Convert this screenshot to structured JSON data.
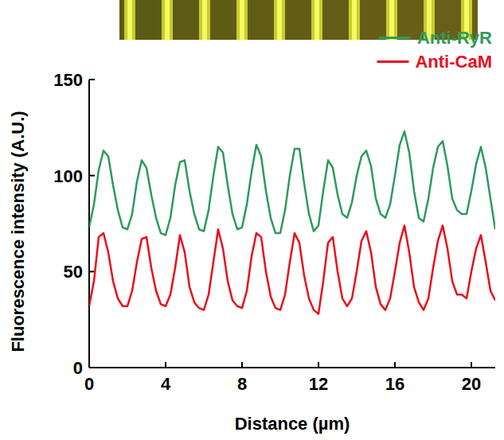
{
  "chart_data": {
    "type": "line",
    "x_label": "Distance (µm)",
    "y_label": "Fluorescence intensity (A.U.)",
    "x": [
      0,
      0.25,
      0.5,
      0.75,
      1,
      1.25,
      1.5,
      1.75,
      2,
      2.25,
      2.5,
      2.75,
      3,
      3.25,
      3.5,
      3.75,
      4,
      4.25,
      4.5,
      4.75,
      5,
      5.25,
      5.5,
      5.75,
      6,
      6.25,
      6.5,
      6.75,
      7,
      7.25,
      7.5,
      7.75,
      8,
      8.25,
      8.5,
      8.75,
      9,
      9.25,
      9.5,
      9.75,
      10,
      10.25,
      10.5,
      10.75,
      11,
      11.25,
      11.5,
      11.75,
      12,
      12.25,
      12.5,
      12.75,
      13,
      13.25,
      13.5,
      13.75,
      14,
      14.25,
      14.5,
      14.75,
      15,
      15.25,
      15.5,
      15.75,
      16,
      16.25,
      16.5,
      16.75,
      17,
      17.25,
      17.5,
      17.75,
      18,
      18.25,
      18.5,
      18.75,
      19,
      19.25,
      19.5,
      19.75,
      20,
      20.25,
      20.5,
      20.75,
      21,
      21.25
    ],
    "series": [
      {
        "name": "Anti-RyR",
        "color": "#2e9a5c",
        "values": [
          73,
          85,
          103,
          113,
          110,
          95,
          82,
          73,
          72,
          80,
          97,
          108,
          104,
          90,
          78,
          70,
          69,
          78,
          95,
          107,
          108,
          92,
          80,
          72,
          71,
          82,
          100,
          115,
          112,
          95,
          80,
          72,
          73,
          85,
          102,
          116,
          110,
          92,
          78,
          70,
          70,
          82,
          100,
          114,
          114,
          96,
          80,
          71,
          74,
          92,
          108,
          104,
          90,
          80,
          78,
          86,
          100,
          110,
          113,
          105,
          88,
          80,
          78,
          85,
          100,
          116,
          123,
          112,
          92,
          78,
          76,
          88,
          104,
          115,
          118,
          105,
          88,
          82,
          80,
          80,
          92,
          106,
          115,
          104,
          88,
          72
        ]
      },
      {
        "name": "Anti-CaM",
        "color": "#e8101c",
        "values": [
          32,
          45,
          68,
          70,
          60,
          45,
          36,
          32,
          32,
          40,
          55,
          67,
          68,
          52,
          40,
          33,
          32,
          38,
          52,
          69,
          60,
          42,
          34,
          31,
          30,
          38,
          55,
          72,
          62,
          45,
          35,
          32,
          31,
          40,
          58,
          70,
          68,
          50,
          37,
          31,
          30,
          38,
          55,
          70,
          65,
          48,
          36,
          30,
          28,
          45,
          65,
          68,
          50,
          36,
          32,
          36,
          50,
          66,
          71,
          60,
          42,
          33,
          30,
          36,
          50,
          65,
          74,
          60,
          42,
          34,
          30,
          36,
          52,
          66,
          74,
          62,
          45,
          38,
          38,
          36,
          50,
          62,
          69,
          55,
          40,
          35
        ]
      }
    ],
    "xlim": [
      0,
      21.25
    ],
    "xticks": [
      0,
      4,
      8,
      12,
      16,
      20
    ],
    "ylim": [
      0,
      150
    ],
    "yticks": [
      0,
      50,
      100,
      150
    ],
    "legend": "top-right",
    "grid": false
  }
}
